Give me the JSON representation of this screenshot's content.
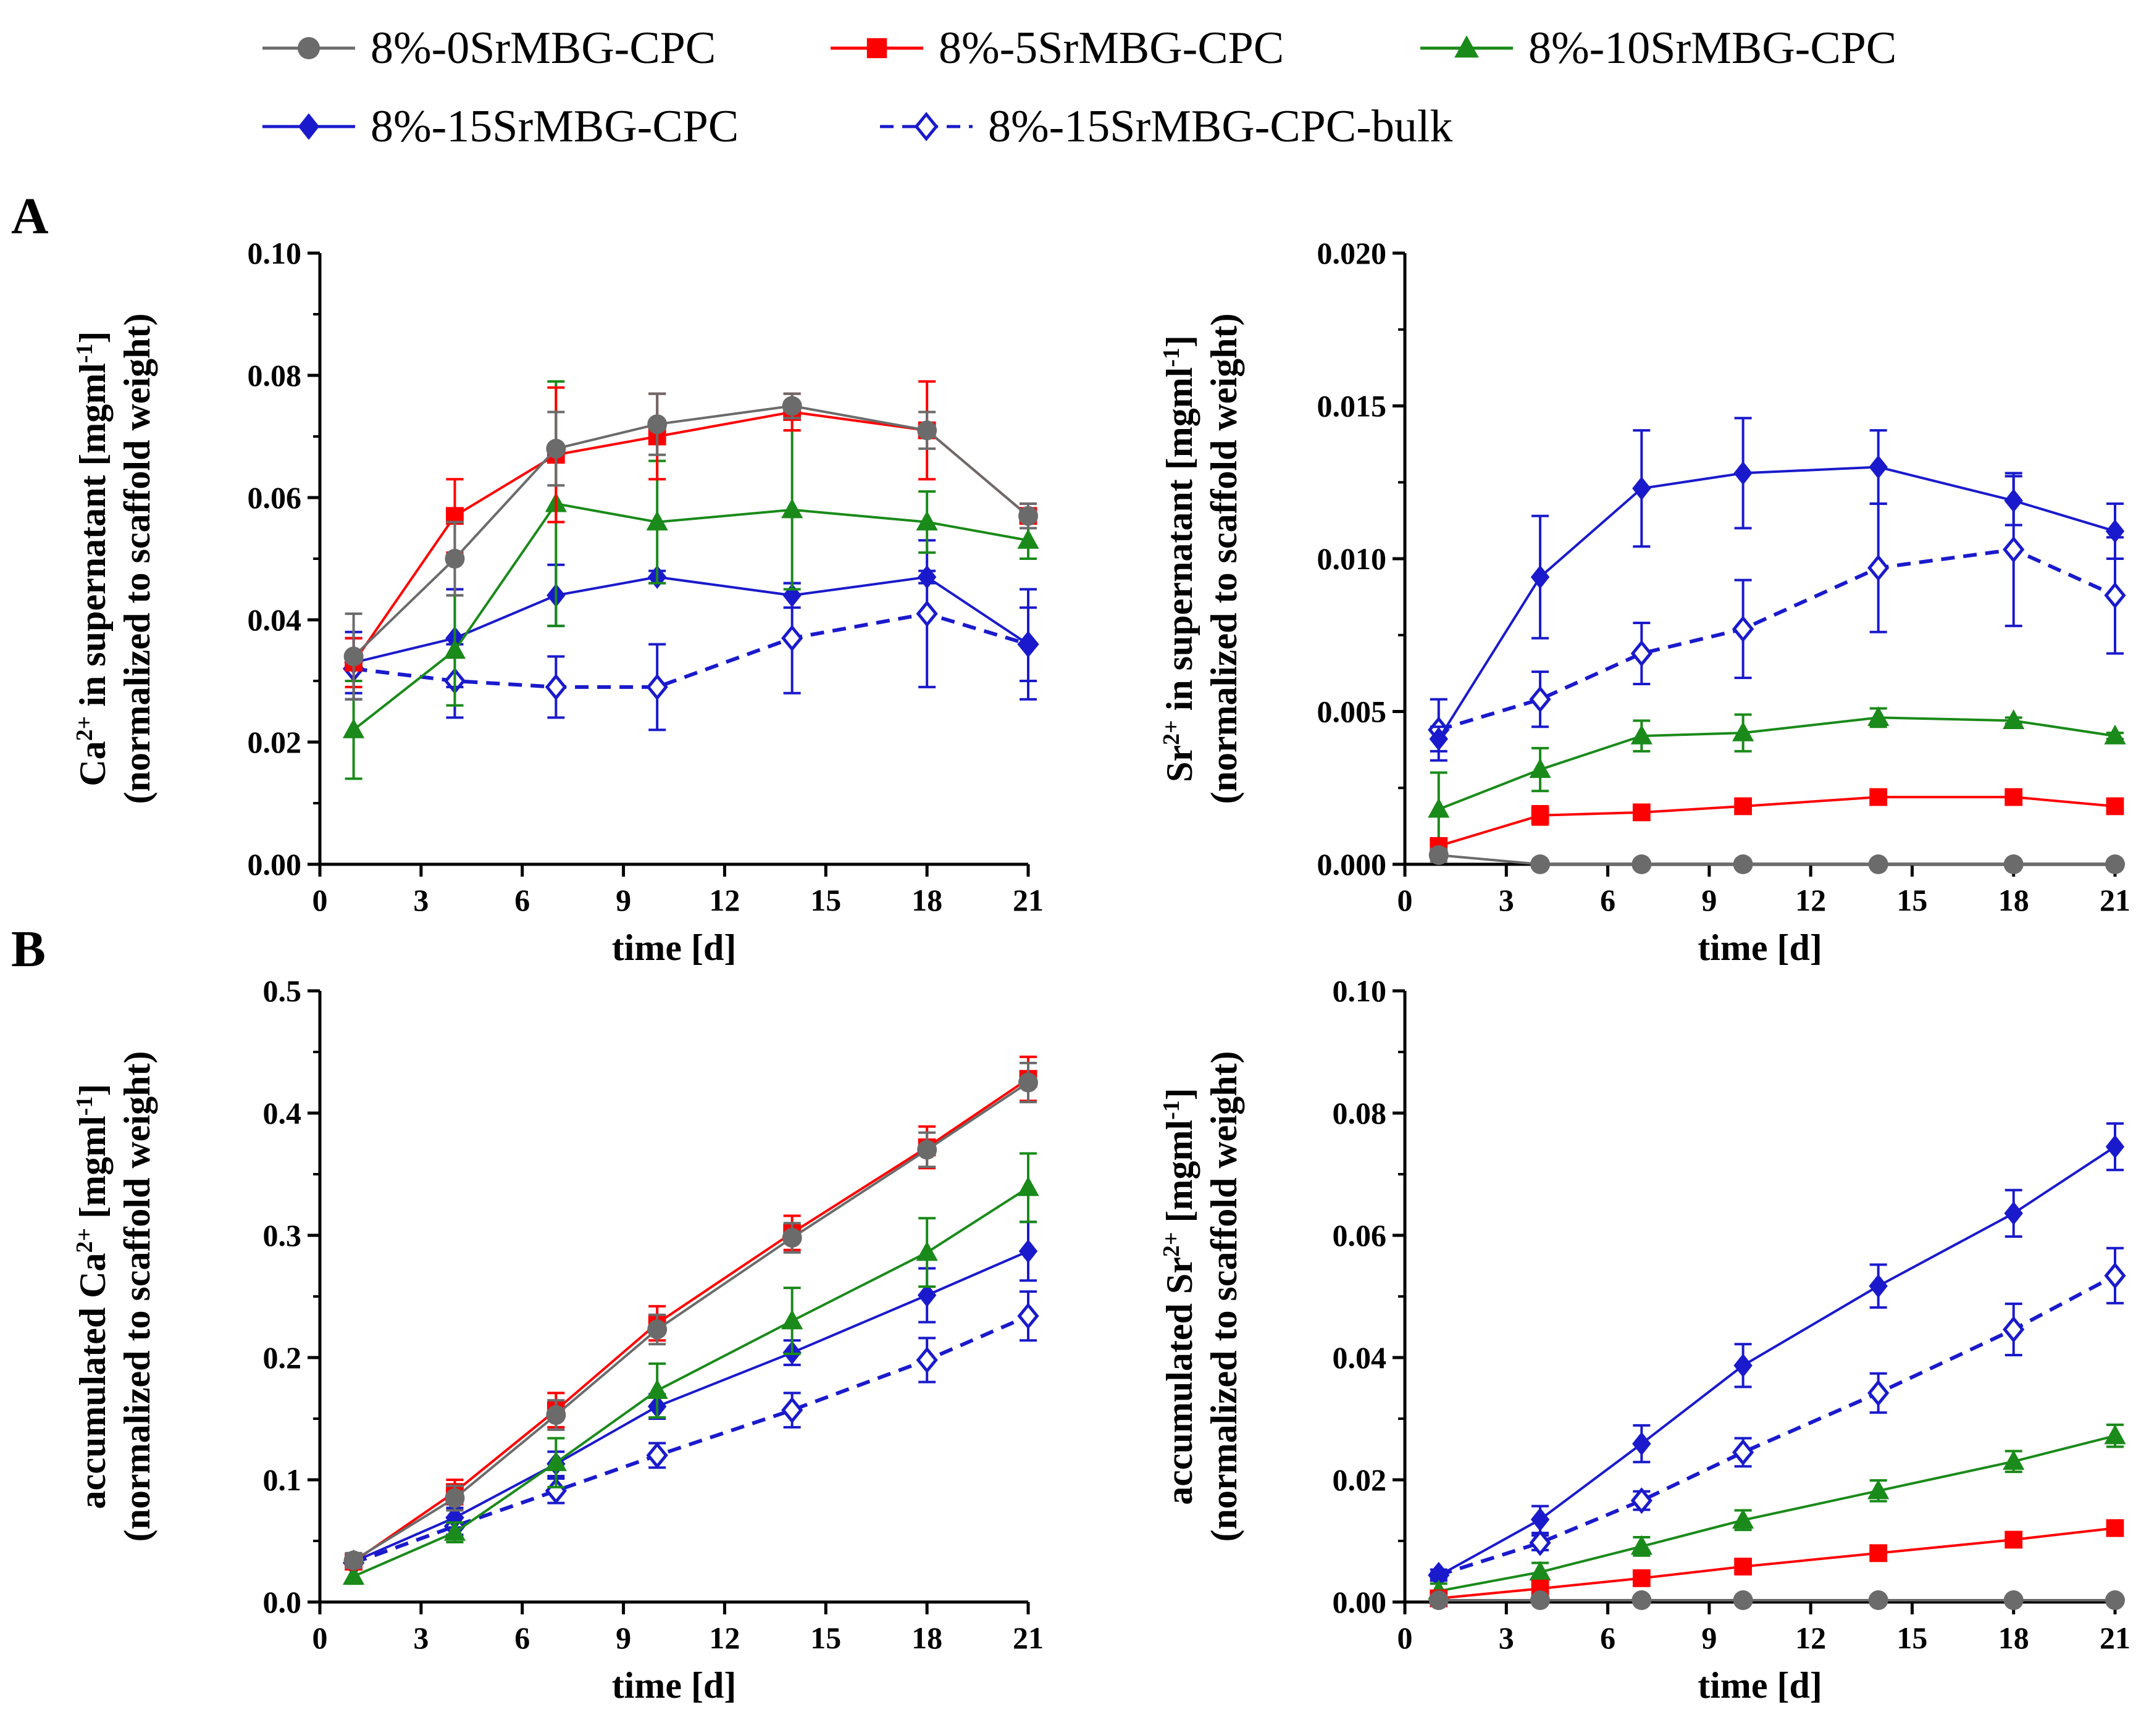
{
  "legend": [
    {
      "label": "8%-0SrMBG-CPC",
      "color": "#6b6b6b",
      "marker": "circle",
      "dash": false
    },
    {
      "label": "8%-5SrMBG-CPC",
      "color": "#ff0000",
      "marker": "square",
      "dash": false
    },
    {
      "label": "8%-10SrMBG-CPC",
      "color": "#1a8a1a",
      "marker": "triangle",
      "dash": false
    },
    {
      "label": "8%-15SrMBG-CPC",
      "color": "#1a1acc",
      "marker": "diamond",
      "dash": false
    },
    {
      "label": "8%-15SrMBG-CPC-bulk",
      "color": "#1a1acc",
      "marker": "diamond-open",
      "dash": true
    }
  ],
  "panel_labels": [
    "A",
    "B"
  ],
  "chart_data": [
    {
      "type": "line",
      "panel": "A",
      "xlabel": "time [d]",
      "ylabel": {
        "line1_pre": "Ca",
        "line1_sup": "2+",
        "line1_mid": " in supernatant [mgml",
        "line1_sup2": "-1",
        "line1_post": "]",
        "line2": "(normalized to scaffold weight)"
      },
      "xlim": [
        0,
        21
      ],
      "ylim": [
        0,
        0.1
      ],
      "xticks": [
        "0",
        "3",
        "6",
        "9",
        "12",
        "15",
        "18",
        "21"
      ],
      "yticks": [
        "0.00",
        "0.02",
        "0.04",
        "0.06",
        "0.08",
        "0.10"
      ],
      "x": [
        1,
        4,
        7,
        10,
        14,
        18,
        21
      ],
      "series": [
        {
          "name": "8%-0SrMBG-CPC",
          "values": [
            0.034,
            0.05,
            0.068,
            0.072,
            0.075,
            0.071,
            0.057
          ],
          "err": [
            0.007,
            0.006,
            0.006,
            0.005,
            0.002,
            0.003,
            0.002
          ]
        },
        {
          "name": "8%-5SrMBG-CPC",
          "values": [
            0.033,
            0.057,
            0.067,
            0.07,
            0.074,
            0.071,
            0.057
          ],
          "err": [
            0.004,
            0.006,
            0.011,
            0.007,
            0.003,
            0.008,
            0.002
          ]
        },
        {
          "name": "8%-10SrMBG-CPC",
          "values": [
            0.022,
            0.035,
            0.059,
            0.056,
            0.058,
            0.056,
            0.053
          ],
          "err": [
            0.008,
            0.009,
            0.02,
            0.01,
            0.013,
            0.005,
            0.003
          ]
        },
        {
          "name": "8%-15SrMBG-CPC",
          "values": [
            0.033,
            0.037,
            0.044,
            0.047,
            0.044,
            0.047,
            0.036
          ],
          "err": [
            0.005,
            0.008,
            0.005,
            0.001,
            0.002,
            0.001,
            0.009
          ]
        },
        {
          "name": "8%-15SrMBG-CPC-bulk",
          "values": [
            0.032,
            0.03,
            0.029,
            0.029,
            0.037,
            0.041,
            0.036
          ],
          "err": [
            0.005,
            0.006,
            0.005,
            0.007,
            0.009,
            0.012,
            0.006
          ]
        }
      ]
    },
    {
      "type": "line",
      "panel": "A",
      "xlabel": "time [d]",
      "ylabel": {
        "line1_pre": "Sr",
        "line1_sup": "2+",
        "line1_mid": " in supernatant [mgml",
        "line1_sup2": "-1",
        "line1_post": "]",
        "line2": "(normalized to scaffold weight)"
      },
      "xlim": [
        0,
        21
      ],
      "ylim": [
        0,
        0.02
      ],
      "xticks": [
        "0",
        "3",
        "6",
        "9",
        "12",
        "15",
        "18",
        "21"
      ],
      "yticks": [
        "0.000",
        "0.005",
        "0.010",
        "0.015",
        "0.020"
      ],
      "x": [
        1,
        4,
        7,
        10,
        14,
        18,
        21
      ],
      "series": [
        {
          "name": "8%-0SrMBG-CPC",
          "values": [
            0.0003,
            0.0,
            0.0,
            0.0,
            0.0,
            0.0,
            0.0
          ],
          "err": [
            0.0002,
            0,
            0,
            0,
            0,
            0,
            0
          ]
        },
        {
          "name": "8%-5SrMBG-CPC",
          "values": [
            0.0006,
            0.0016,
            0.0017,
            0.0019,
            0.0022,
            0.0022,
            0.0019
          ],
          "err": [
            0.0002,
            0.0003,
            0.0001,
            0.0001,
            0.0001,
            0.0002,
            0.0001
          ]
        },
        {
          "name": "8%-10SrMBG-CPC",
          "values": [
            0.0018,
            0.0031,
            0.0042,
            0.0043,
            0.0048,
            0.0047,
            0.0042
          ],
          "err": [
            0.0012,
            0.0007,
            0.0005,
            0.0006,
            0.0003,
            0.0001,
            0.0001
          ]
        },
        {
          "name": "8%-15SrMBG-CPC",
          "values": [
            0.0041,
            0.0094,
            0.0123,
            0.0128,
            0.013,
            0.0119,
            0.0109
          ],
          "err": [
            0.0004,
            0.002,
            0.0019,
            0.0018,
            0.0012,
            0.0008,
            0.0009
          ]
        },
        {
          "name": "8%-15SrMBG-CPC-bulk",
          "values": [
            0.0044,
            0.0054,
            0.0069,
            0.0077,
            0.0097,
            0.0103,
            0.0088
          ],
          "err": [
            0.001,
            0.0009,
            0.001,
            0.0016,
            0.0021,
            0.0025,
            0.0019
          ]
        }
      ]
    },
    {
      "type": "line",
      "panel": "B",
      "xlabel": "time [d]",
      "ylabel": {
        "line1_pre": "accumulated Ca",
        "line1_sup": "2+",
        "line1_mid": " [mgml",
        "line1_sup2": "-1",
        "line1_post": "]",
        "line2": "(normalized to scaffold weight)"
      },
      "xlim": [
        0,
        21
      ],
      "ylim": [
        0,
        0.5
      ],
      "xticks": [
        "0",
        "3",
        "6",
        "9",
        "12",
        "15",
        "18",
        "21"
      ],
      "yticks": [
        "0.0",
        "0.1",
        "0.2",
        "0.3",
        "0.4",
        "0.5"
      ],
      "x": [
        1,
        4,
        7,
        10,
        14,
        18,
        21
      ],
      "series": [
        {
          "name": "8%-0SrMBG-CPC",
          "values": [
            0.034,
            0.085,
            0.153,
            0.223,
            0.298,
            0.37,
            0.425
          ],
          "err": [
            0.006,
            0.01,
            0.012,
            0.012,
            0.012,
            0.014,
            0.016
          ]
        },
        {
          "name": "8%-5SrMBG-CPC",
          "values": [
            0.033,
            0.09,
            0.157,
            0.228,
            0.302,
            0.372,
            0.428
          ],
          "err": [
            0.005,
            0.01,
            0.014,
            0.014,
            0.014,
            0.017,
            0.018
          ]
        },
        {
          "name": "8%-10SrMBG-CPC",
          "values": [
            0.021,
            0.057,
            0.114,
            0.173,
            0.23,
            0.286,
            0.339
          ],
          "err": [
            0.006,
            0.008,
            0.02,
            0.022,
            0.027,
            0.028,
            0.028
          ]
        },
        {
          "name": "8%-15SrMBG-CPC",
          "values": [
            0.033,
            0.069,
            0.113,
            0.16,
            0.204,
            0.251,
            0.287
          ],
          "err": [
            0.005,
            0.008,
            0.01,
            0.01,
            0.01,
            0.022,
            0.024
          ]
        },
        {
          "name": "8%-15SrMBG-CPC-bulk",
          "values": [
            0.032,
            0.062,
            0.091,
            0.12,
            0.157,
            0.198,
            0.234
          ],
          "err": [
            0.005,
            0.007,
            0.01,
            0.01,
            0.014,
            0.018,
            0.02
          ]
        }
      ]
    },
    {
      "type": "line",
      "panel": "B",
      "xlabel": "time [d]",
      "ylabel": {
        "line1_pre": "accumulated Sr",
        "line1_sup": "2+",
        "line1_mid": " [mgml",
        "line1_sup2": "-1",
        "line1_post": "]",
        "line2": "(normalized to scaffold weight)"
      },
      "xlim": [
        0,
        21
      ],
      "ylim": [
        0,
        0.1
      ],
      "xticks": [
        "0",
        "3",
        "6",
        "9",
        "12",
        "15",
        "18",
        "21"
      ],
      "yticks": [
        "0.00",
        "0.02",
        "0.04",
        "0.06",
        "0.08",
        "0.10"
      ],
      "x": [
        1,
        4,
        7,
        10,
        14,
        18,
        21
      ],
      "series": [
        {
          "name": "8%-0SrMBG-CPC",
          "values": [
            0.0003,
            0.0003,
            0.0003,
            0.0003,
            0.0003,
            0.0003,
            0.0003
          ],
          "err": [
            0,
            0,
            0,
            0,
            0,
            0,
            0
          ]
        },
        {
          "name": "8%-5SrMBG-CPC",
          "values": [
            0.0006,
            0.0022,
            0.0039,
            0.0058,
            0.008,
            0.0102,
            0.0121
          ],
          "err": [
            0.0002,
            0.0003,
            0.0004,
            0.0004,
            0.0004,
            0.0005,
            0.0005
          ]
        },
        {
          "name": "8%-10SrMBG-CPC",
          "values": [
            0.0018,
            0.0049,
            0.0091,
            0.0134,
            0.0182,
            0.023,
            0.0272
          ],
          "err": [
            0.0012,
            0.0015,
            0.0015,
            0.0016,
            0.0017,
            0.0017,
            0.0018
          ]
        },
        {
          "name": "8%-15SrMBG-CPC",
          "values": [
            0.0043,
            0.0135,
            0.0259,
            0.0387,
            0.0517,
            0.0636,
            0.0745
          ],
          "err": [
            0.0005,
            0.0022,
            0.003,
            0.0035,
            0.0035,
            0.0038,
            0.0038
          ]
        },
        {
          "name": "8%-15SrMBG-CPC-bulk",
          "values": [
            0.0044,
            0.0097,
            0.0166,
            0.0245,
            0.0342,
            0.0446,
            0.0534
          ],
          "err": [
            0.0009,
            0.0012,
            0.0015,
            0.0023,
            0.0032,
            0.0042,
            0.0045
          ]
        }
      ]
    }
  ]
}
